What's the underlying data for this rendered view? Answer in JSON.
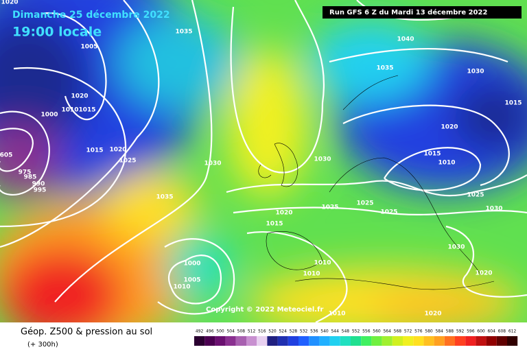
{
  "header": {
    "date": "Dimanche 25 décembre 2022",
    "time": "19:00 locale",
    "run": "Run GFS 6 Z du Mardi 13 décembre 2022"
  },
  "copyright": "Copyright © 2022 Meteociel.fr",
  "legend": {
    "title": "Géop. Z500 & pression au sol",
    "subtitle": "(+ 300h)",
    "scale": [
      492,
      496,
      500,
      504,
      508,
      512,
      516,
      520,
      524,
      528,
      532,
      536,
      540,
      544,
      548,
      552,
      556,
      560,
      564,
      568,
      572,
      576,
      580,
      584,
      588,
      592,
      596,
      600,
      604,
      608,
      612
    ],
    "colors": [
      "#2a0030",
      "#4a0050",
      "#6a1070",
      "#8a3090",
      "#a860b0",
      "#c890d0",
      "#e8d0f0",
      "#202080",
      "#2030b0",
      "#2040e0",
      "#2060ff",
      "#2090ff",
      "#20b0ff",
      "#20d0f0",
      "#20e0c0",
      "#20e090",
      "#40f060",
      "#70f040",
      "#a0f030",
      "#d0f020",
      "#f0f020",
      "#ffe020",
      "#ffc020",
      "#ffa020",
      "#ff7020",
      "#ff4020",
      "#f02020",
      "#c01010",
      "#900000",
      "#600000",
      "#300000"
    ]
  },
  "isobar_labels": [
    "1020",
    "1005",
    "1035",
    "1040",
    "1035",
    "1030",
    "1020",
    "1010",
    "1015",
    "1000",
    "1015",
    "1020",
    "1015",
    "1020",
    "1025",
    "1030",
    "1030",
    "1015",
    "1010",
    "1035",
    "1025",
    "1025",
    "1025",
    "1025",
    "1030",
    "1020",
    "1015",
    "1030",
    "1000",
    "1010",
    "1010",
    "1005",
    "1010",
    "1020",
    "1010",
    "1020",
    "990",
    "995",
    "985",
    "975",
    "605"
  ]
}
